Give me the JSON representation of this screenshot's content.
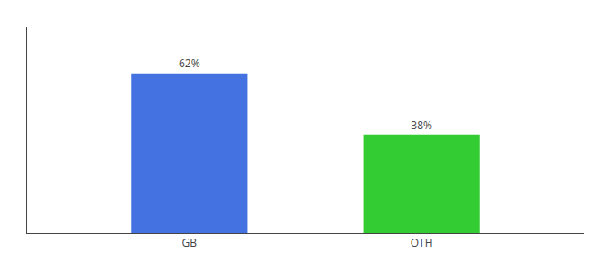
{
  "chart_data": {
    "type": "bar",
    "categories": [
      "GB",
      "OTH"
    ],
    "values": [
      62,
      38
    ],
    "value_labels": [
      "62%",
      "38%"
    ],
    "data_labels": true,
    "colors": [
      "#4472e0",
      "#33cc33"
    ],
    "ylim": [
      0,
      80
    ],
    "tick_labels": "x",
    "grid": false
  }
}
